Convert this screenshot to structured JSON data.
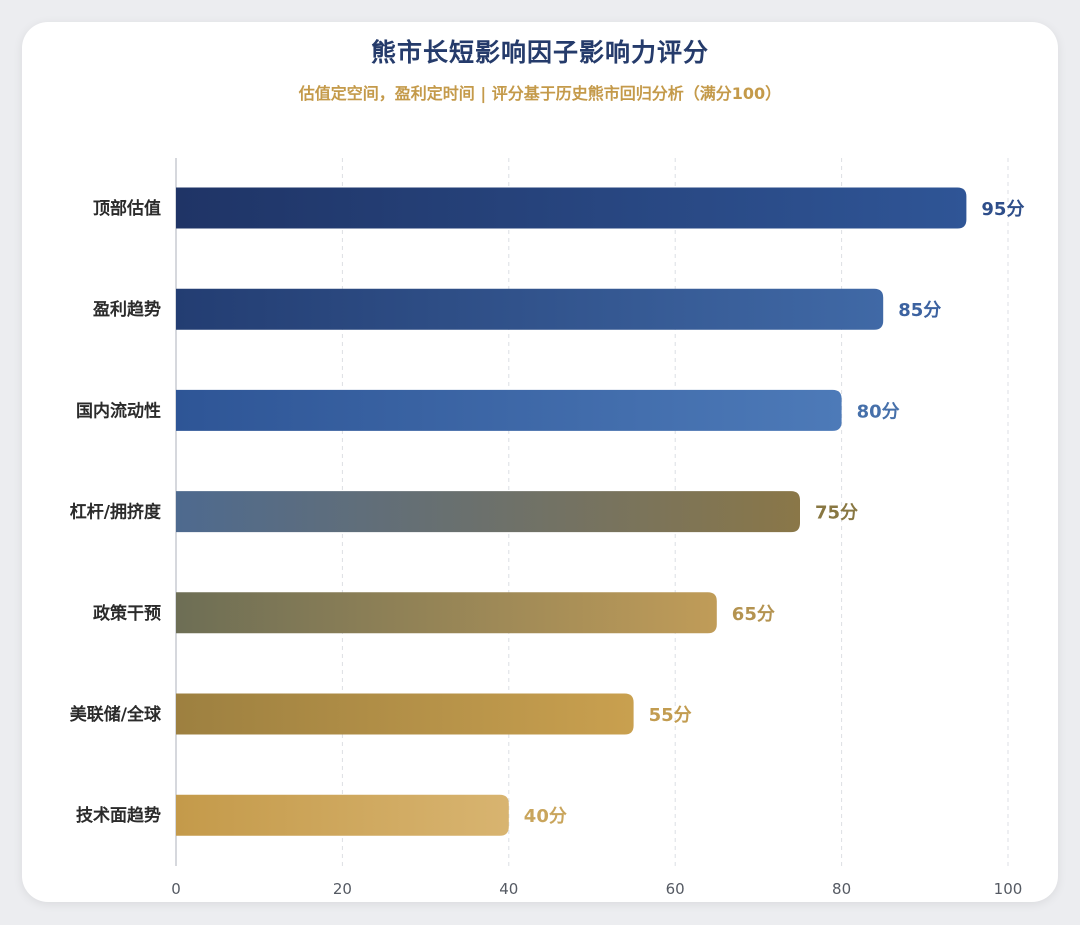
{
  "chart_data": {
    "type": "bar",
    "orientation": "horizontal",
    "title": "熊市长短影响因子影响力评分",
    "subtitle": "估值定空间，盈利定时间 | 评分基于历史熊市回归分析（满分100）",
    "categories": [
      "顶部估值",
      "盈利趋势",
      "国内流动性",
      "杠杆/拥挤度",
      "政策干预",
      "美联储/全球",
      "技术面趋势"
    ],
    "values": [
      95,
      85,
      80,
      75,
      65,
      55,
      40
    ],
    "value_labels": [
      "95分",
      "85分",
      "80分",
      "75分",
      "65分",
      "55分",
      "40分"
    ],
    "xlim": [
      0,
      100
    ],
    "xticks": [
      "0",
      "20",
      "40",
      "60",
      "80",
      "100"
    ],
    "grid": true,
    "gradients": [
      [
        "#1f3466",
        "#2f5596"
      ],
      [
        "#233d72",
        "#4069a6"
      ],
      [
        "#2e5596",
        "#4d7ab8"
      ],
      [
        "#4e6a8f",
        "#8a7748"
      ],
      [
        "#6d6e55",
        "#c09c58"
      ],
      [
        "#9d8040",
        "#c9a04f"
      ],
      [
        "#c49a4a",
        "#d8b470"
      ]
    ],
    "label_colors": [
      "#2e4e8a",
      "#3c62a0",
      "#4670aa",
      "#887742",
      "#b49350",
      "#c29c50",
      "#c9a55c"
    ]
  }
}
